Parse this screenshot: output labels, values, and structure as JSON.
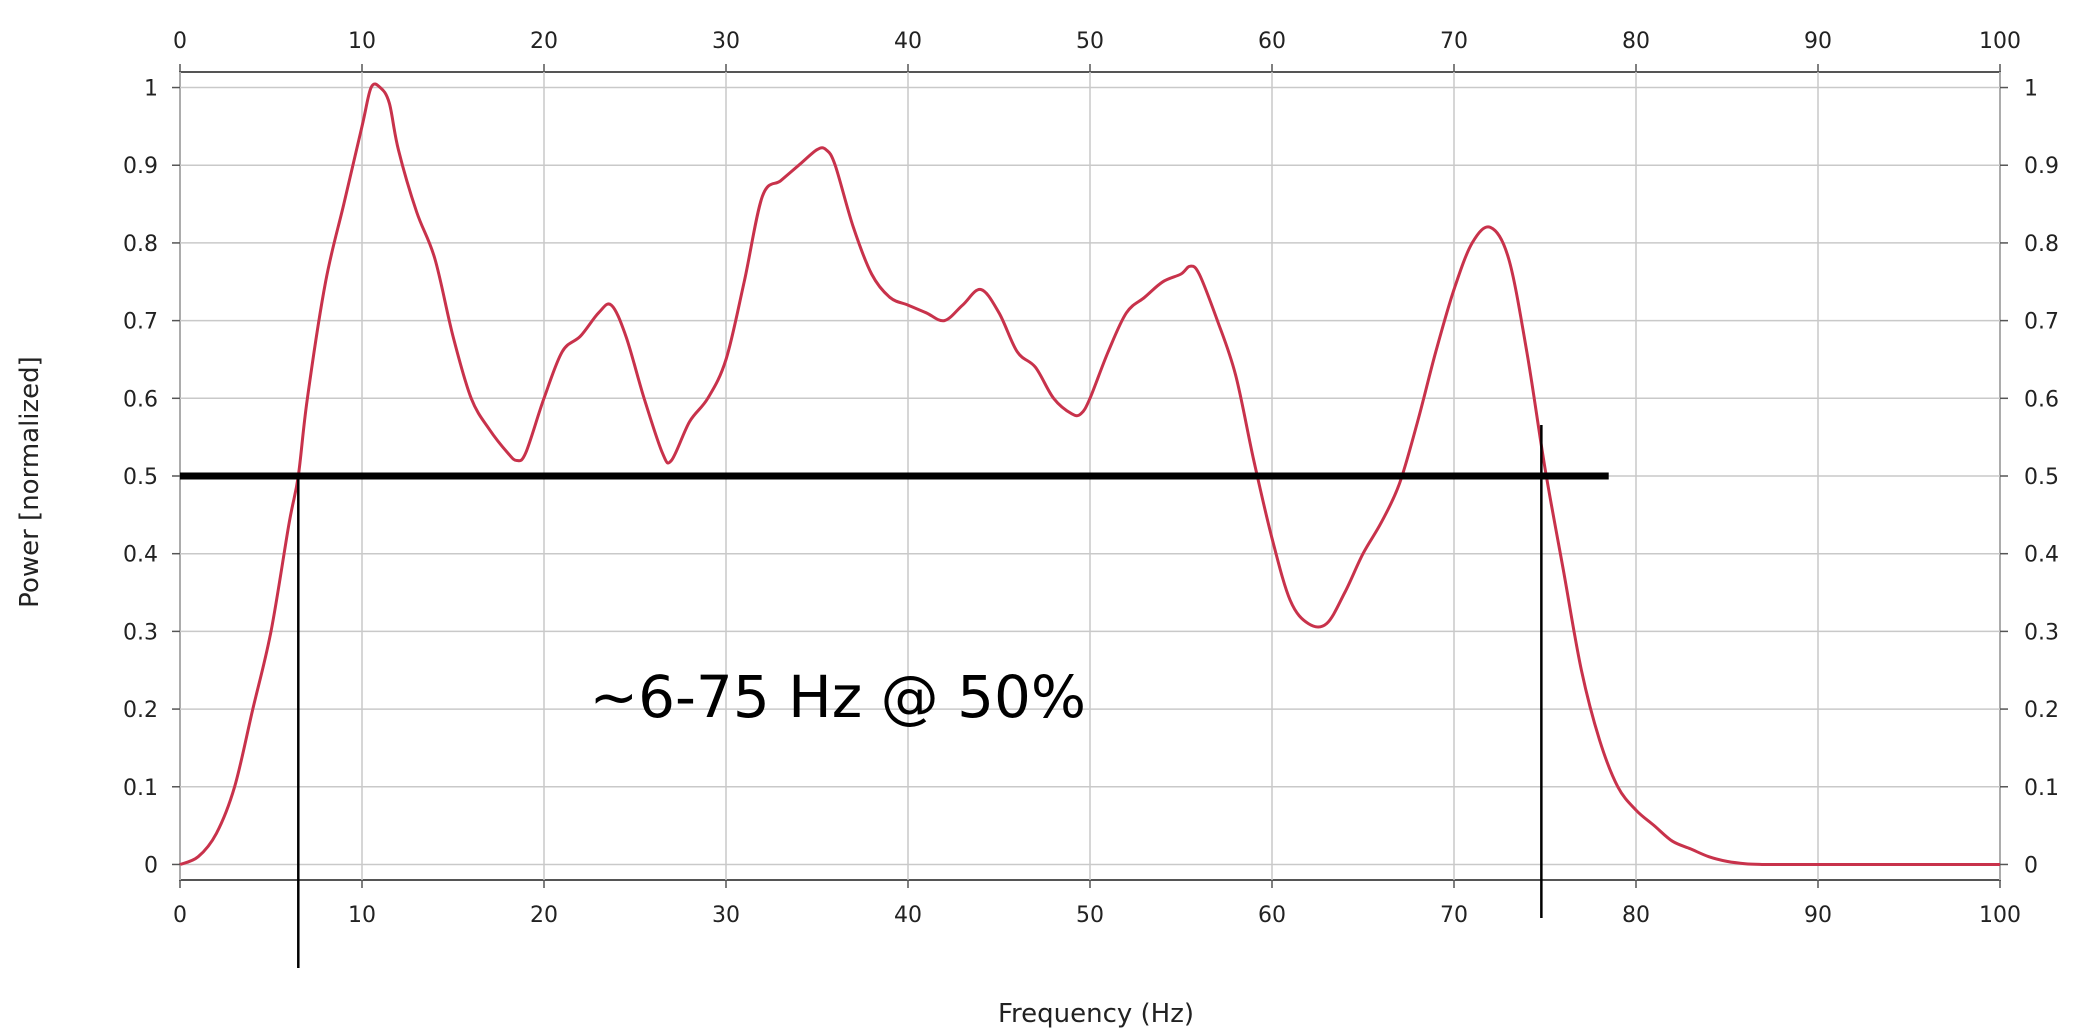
{
  "chart_data": {
    "type": "line",
    "title": "",
    "xlabel": "Frequency (Hz)",
    "ylabel": "Power [normalized]",
    "xlim": [
      0,
      100
    ],
    "ylim": [
      -0.02,
      1.02
    ],
    "grid": true,
    "x_ticks": [
      0,
      10,
      20,
      30,
      40,
      50,
      60,
      70,
      80,
      90,
      100
    ],
    "x_tick_labels": [
      "0",
      "10",
      "20",
      "30",
      "40",
      "50",
      "60",
      "70",
      "80",
      "90",
      "100"
    ],
    "y_ticks": [
      0,
      0.1,
      0.2,
      0.3,
      0.4,
      0.5,
      0.6,
      0.7,
      0.8,
      0.9,
      1
    ],
    "y_tick_labels": [
      "0",
      "0.1",
      "0.2",
      "0.3",
      "0.4",
      "0.5",
      "0.6",
      "0.7",
      "0.8",
      "0.9",
      "1"
    ],
    "series": [
      {
        "color": "#c8324b",
        "x": [
          0,
          1,
          2,
          3,
          4,
          5,
          6,
          6.5,
          7,
          8,
          9,
          10,
          10.5,
          11,
          11.5,
          12,
          13,
          14,
          15,
          16,
          17,
          18,
          18.5,
          19,
          20,
          21,
          22,
          23,
          23.7,
          24.5,
          25.5,
          26.5,
          27,
          28,
          29,
          30,
          31,
          32,
          33,
          34,
          35,
          35.5,
          36,
          37,
          38,
          39,
          40,
          41,
          42,
          43,
          44,
          45,
          46,
          47,
          48,
          49,
          49.5,
          50,
          51,
          52,
          53,
          54,
          55,
          55.5,
          56,
          57,
          58,
          59,
          60,
          61,
          62,
          63,
          64,
          65,
          66,
          67,
          68,
          69,
          70,
          71,
          72,
          73,
          74,
          75,
          76,
          77,
          78,
          79,
          80,
          81,
          82,
          83,
          84,
          85,
          86,
          87,
          88,
          90,
          95,
          100
        ],
        "y": [
          0.0,
          0.01,
          0.04,
          0.1,
          0.2,
          0.3,
          0.44,
          0.5,
          0.6,
          0.75,
          0.85,
          0.95,
          1.0,
          1.0,
          0.98,
          0.92,
          0.84,
          0.78,
          0.68,
          0.6,
          0.56,
          0.53,
          0.52,
          0.53,
          0.6,
          0.66,
          0.68,
          0.71,
          0.72,
          0.68,
          0.6,
          0.53,
          0.52,
          0.57,
          0.6,
          0.65,
          0.75,
          0.86,
          0.88,
          0.9,
          0.92,
          0.92,
          0.9,
          0.82,
          0.76,
          0.73,
          0.72,
          0.71,
          0.7,
          0.72,
          0.74,
          0.71,
          0.66,
          0.64,
          0.6,
          0.58,
          0.58,
          0.6,
          0.66,
          0.71,
          0.73,
          0.75,
          0.76,
          0.77,
          0.76,
          0.7,
          0.63,
          0.52,
          0.42,
          0.34,
          0.31,
          0.31,
          0.35,
          0.4,
          0.44,
          0.49,
          0.57,
          0.66,
          0.74,
          0.8,
          0.82,
          0.78,
          0.66,
          0.51,
          0.38,
          0.25,
          0.16,
          0.1,
          0.07,
          0.05,
          0.03,
          0.02,
          0.01,
          0.004,
          0.001,
          0.0,
          0.0,
          0.0,
          0.0,
          0.0
        ]
      }
    ],
    "threshold": {
      "y": 0.5,
      "x_start": 0,
      "x_end": 78.5,
      "color": "#000000"
    },
    "markers": [
      {
        "x": 6.5
      },
      {
        "x": 74.8
      }
    ],
    "annotation": {
      "text": "~6-75 Hz @ 50%",
      "x": 22.5,
      "y": 0.19
    }
  }
}
